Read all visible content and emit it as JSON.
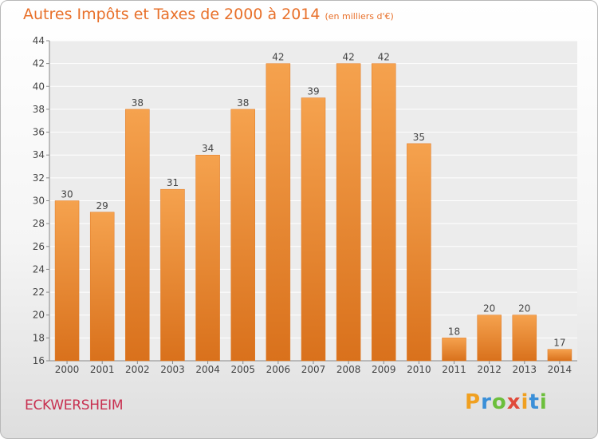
{
  "header": {
    "title": "Autres Impôts et Taxes de 2000 à 2014",
    "unit": "(en milliers d'€)"
  },
  "footer": {
    "commune": "ECKWERSHEIM",
    "logo": "Proxiti"
  },
  "colors": {
    "bar_top": "#f5a24e",
    "bar_bottom": "#d9711c",
    "title": "#e8702a",
    "commune": "#c83050"
  },
  "chart_data": {
    "type": "bar",
    "title": "Autres Impôts et Taxes de 2000 à 2014",
    "subtitle": "(en milliers d'€)",
    "categories": [
      "2000",
      "2001",
      "2002",
      "2003",
      "2004",
      "2005",
      "2006",
      "2007",
      "2008",
      "2009",
      "2010",
      "2011",
      "2012",
      "2013",
      "2014"
    ],
    "values": [
      30,
      29,
      38,
      31,
      34,
      38,
      42,
      39,
      42,
      42,
      35,
      18,
      20,
      20,
      17
    ],
    "ylim": [
      16,
      44
    ],
    "yticks": [
      16,
      18,
      20,
      22,
      24,
      26,
      28,
      30,
      32,
      34,
      36,
      38,
      40,
      42,
      44
    ],
    "grid": true,
    "legend": "none"
  }
}
